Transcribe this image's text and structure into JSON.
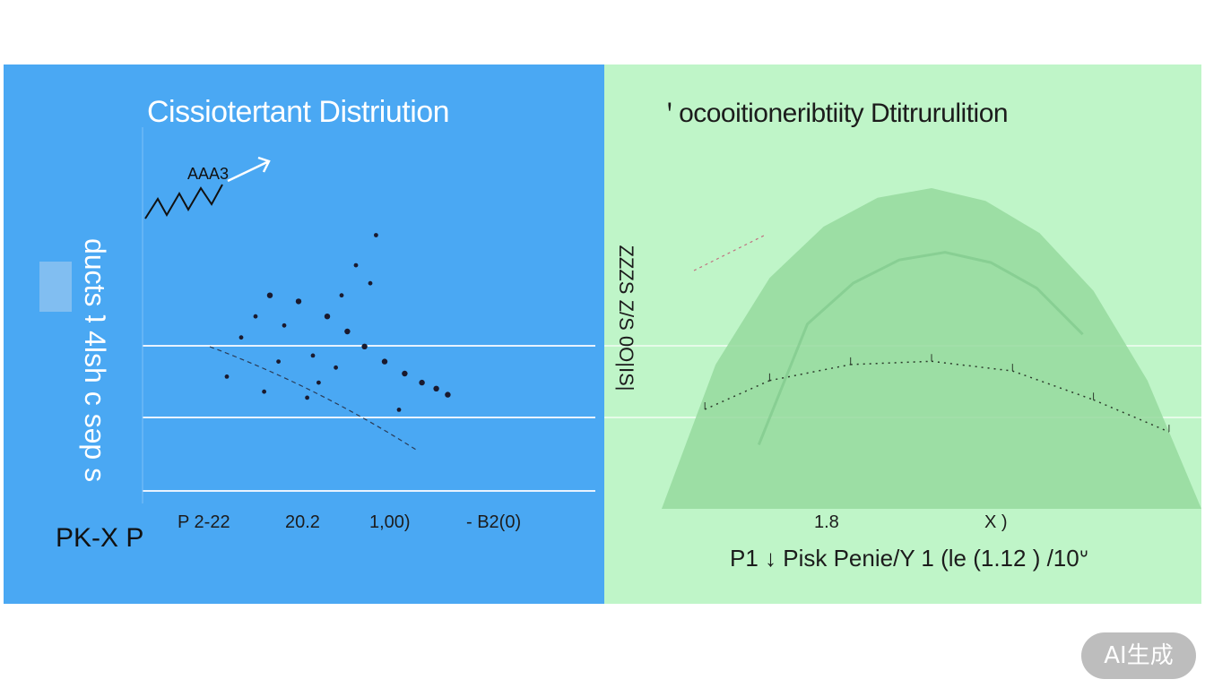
{
  "chart_data": [
    {
      "type": "scatter",
      "title": "Cissiotertant Distriution",
      "ylabel": "ducts ʇ 4lsh c sǝp  s",
      "corner_label": "PK-X P",
      "xticks": [
        "P 2-22",
        "20.2",
        "1,00)",
        "- B2(0)"
      ],
      "annotation": "AAA3",
      "grid": true,
      "points": [
        {
          "x": 0.35,
          "y": 0.62
        },
        {
          "x": 0.45,
          "y": 0.6
        },
        {
          "x": 0.55,
          "y": 0.55
        },
        {
          "x": 0.62,
          "y": 0.5
        },
        {
          "x": 0.68,
          "y": 0.45
        },
        {
          "x": 0.75,
          "y": 0.4
        },
        {
          "x": 0.82,
          "y": 0.36
        },
        {
          "x": 0.88,
          "y": 0.33
        },
        {
          "x": 0.93,
          "y": 0.31
        },
        {
          "x": 0.97,
          "y": 0.29
        },
        {
          "x": 0.3,
          "y": 0.55
        },
        {
          "x": 0.25,
          "y": 0.48
        },
        {
          "x": 0.4,
          "y": 0.52
        },
        {
          "x": 0.5,
          "y": 0.42
        },
        {
          "x": 0.58,
          "y": 0.38
        },
        {
          "x": 0.2,
          "y": 0.35
        },
        {
          "x": 0.33,
          "y": 0.3
        },
        {
          "x": 0.48,
          "y": 0.28
        },
        {
          "x": 0.6,
          "y": 0.62
        },
        {
          "x": 0.7,
          "y": 0.66
        },
        {
          "x": 0.65,
          "y": 0.72
        },
        {
          "x": 0.72,
          "y": 0.82
        },
        {
          "x": 0.38,
          "y": 0.4
        },
        {
          "x": 0.52,
          "y": 0.33
        },
        {
          "x": 0.8,
          "y": 0.24
        }
      ],
      "colors": {
        "background": "#4aa8f3",
        "marks": "#1a1a2e"
      }
    },
    {
      "type": "area",
      "title": "ꞌ ocooitioneribtiity Dtitrurulition",
      "ylabel": "ZZZS Z/S 0O|IS|",
      "xlabel": "P1 ↓ Pisk Penie/Y 1 (le (1.12 ) /10ᐡ",
      "xticks": [
        "1.8",
        "X )"
      ],
      "curve": [
        {
          "x": 0.0,
          "y": 0.0
        },
        {
          "x": 0.1,
          "y": 0.45
        },
        {
          "x": 0.2,
          "y": 0.72
        },
        {
          "x": 0.3,
          "y": 0.88
        },
        {
          "x": 0.4,
          "y": 0.97
        },
        {
          "x": 0.5,
          "y": 1.0
        },
        {
          "x": 0.6,
          "y": 0.96
        },
        {
          "x": 0.7,
          "y": 0.86
        },
        {
          "x": 0.8,
          "y": 0.68
        },
        {
          "x": 0.9,
          "y": 0.4
        },
        {
          "x": 1.0,
          "y": 0.0
        }
      ],
      "inner_curve": [
        {
          "x": 0.08,
          "y": 0.31
        },
        {
          "x": 0.2,
          "y": 0.4
        },
        {
          "x": 0.35,
          "y": 0.45
        },
        {
          "x": 0.5,
          "y": 0.46
        },
        {
          "x": 0.65,
          "y": 0.43
        },
        {
          "x": 0.8,
          "y": 0.34
        },
        {
          "x": 0.94,
          "y": 0.24
        }
      ],
      "colors": {
        "background": "#bff5c8",
        "fill": "#95d99e",
        "fill_dark": "#7cc488",
        "dots": "#2b3a2b"
      }
    }
  ],
  "badge": {
    "label": "AI生成"
  }
}
